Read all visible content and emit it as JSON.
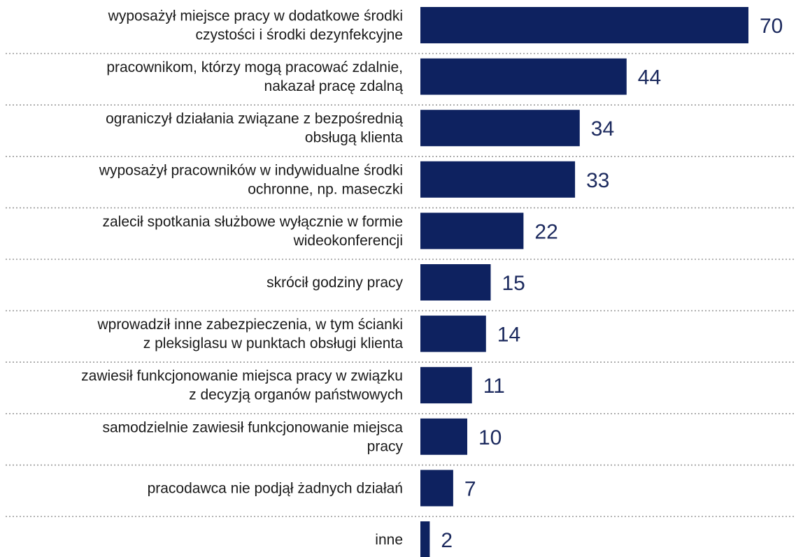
{
  "chart_data": {
    "type": "bar",
    "orientation": "horizontal",
    "categories": [
      [
        "wyposażył miejsce pracy w dodatkowe środki",
        "czystości i środki dezynfekcyjne"
      ],
      [
        "pracownikom, którzy mogą pracować zdalnie,",
        "nakazał pracę zdalną"
      ],
      [
        "ograniczył działania związane z bezpośrednią",
        "obsługą klienta"
      ],
      [
        "wyposażył pracowników w indywidualne środki",
        "ochronne, np. maseczki"
      ],
      [
        "zalecił spotkania służbowe wyłącznie w formie",
        "wideokonferencji"
      ],
      [
        "skrócił godziny pracy"
      ],
      [
        "wprowadził inne zabezpieczenia, w tym ścianki",
        "z pleksiglasu w punktach obsługi klienta"
      ],
      [
        "zawiesił funkcjonowanie miejsca pracy w związku",
        "z decyzją organów państwowych"
      ],
      [
        "samodzielnie zawiesił funkcjonowanie miejsca",
        "pracy"
      ],
      [
        "pracodawca nie podjął żadnych działań"
      ],
      [
        "inne"
      ]
    ],
    "values": [
      70,
      44,
      34,
      33,
      22,
      15,
      14,
      11,
      10,
      7,
      2
    ],
    "value_labels": [
      "70",
      "44",
      "34",
      "33",
      "22",
      "15",
      "14",
      "11",
      "10",
      "7",
      "2"
    ],
    "title": "",
    "xlabel": "",
    "ylabel": "",
    "xlim": [
      0,
      70
    ],
    "grid": false,
    "separators": "dotted",
    "bar_color": "#0e2260",
    "value_color": "#1c2a5e"
  }
}
